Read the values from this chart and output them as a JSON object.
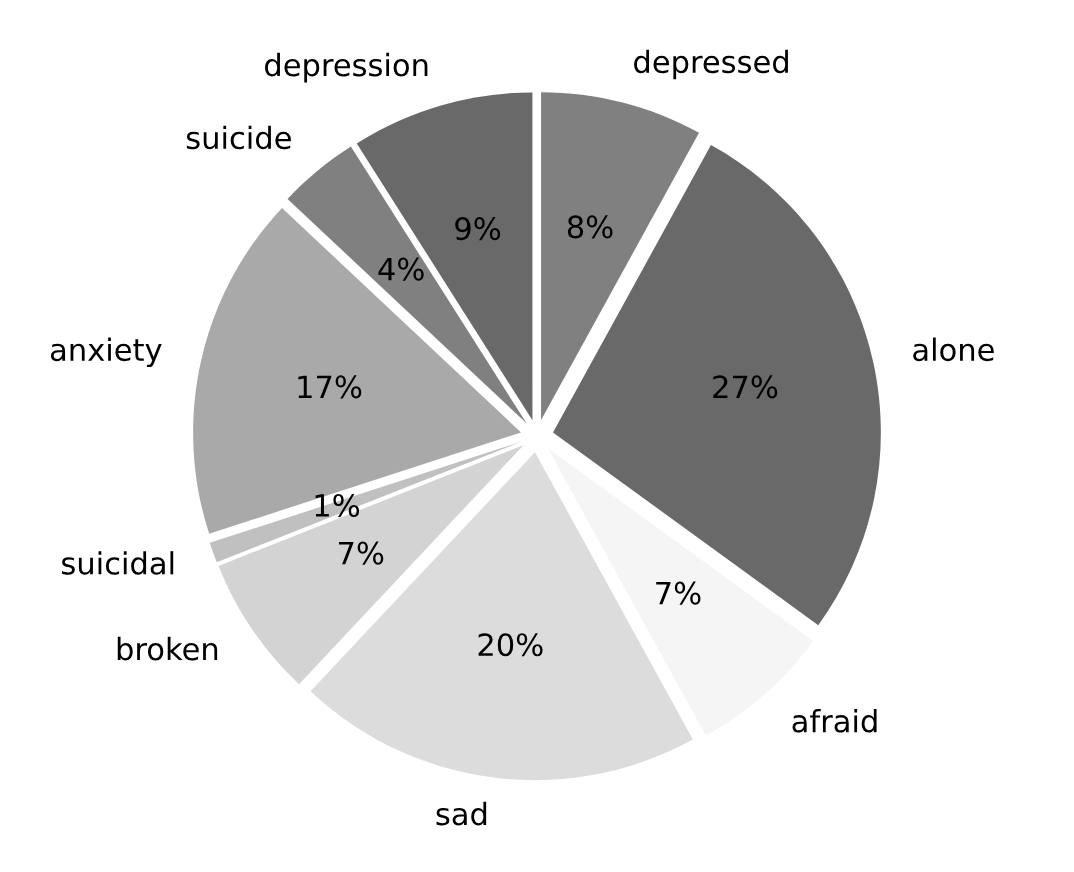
{
  "chart_data": {
    "type": "pie",
    "categories": [
      "depression",
      "suicide",
      "anxiety",
      "suicidal",
      "broken",
      "sad",
      "afraid",
      "alone",
      "depressed"
    ],
    "values": [
      9,
      4,
      17,
      1,
      7,
      20,
      7,
      27,
      8
    ],
    "value_labels": [
      "9%",
      "4%",
      "17%",
      "1%",
      "7%",
      "20%",
      "7%",
      "27%",
      "8%"
    ],
    "colors": [
      "#696969",
      "#808080",
      "#a9a9a9",
      "#c0c0c0",
      "#d3d3d3",
      "#dcdcdc",
      "#f5f5f5",
      "#696969",
      "#808080"
    ]
  }
}
